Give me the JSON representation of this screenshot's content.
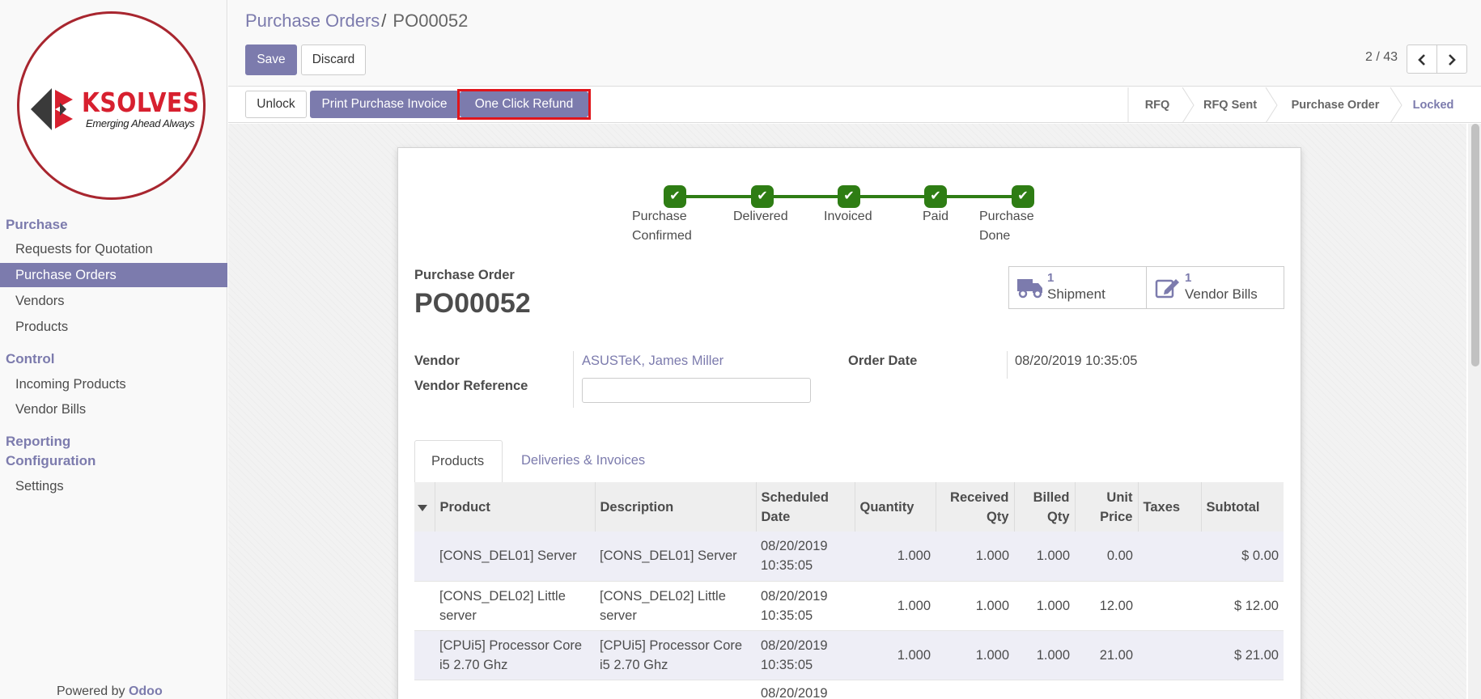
{
  "sidebar": {
    "logo_text": "KSOLVES",
    "logo_tagline": "Emerging Ahead Always",
    "sections": [
      {
        "label": "Purchase",
        "items": [
          "Requests for Quotation",
          "Purchase Orders",
          "Vendors",
          "Products"
        ]
      },
      {
        "label": "Control",
        "items": [
          "Incoming Products",
          "Vendor Bills"
        ]
      },
      {
        "label": "Reporting",
        "items": []
      },
      {
        "label": "Configuration",
        "items": [
          "Settings"
        ]
      }
    ],
    "active_item": "Purchase Orders",
    "powered_prefix": "Powered by",
    "powered_brand": "Odoo"
  },
  "header": {
    "breadcrumb_parent": "Purchase Orders",
    "breadcrumb_sep": "/",
    "breadcrumb_current": "PO00052",
    "save_label": "Save",
    "discard_label": "Discard",
    "pager": "2 / 43",
    "prev_icon": "chevron-left-icon",
    "next_icon": "chevron-right-icon"
  },
  "actions": {
    "unlock_label": "Unlock",
    "print_label": "Print Purchase Invoice",
    "refund_label": "One Click Refund"
  },
  "status_stages": [
    "RFQ",
    "RFQ Sent",
    "Purchase Order",
    "Locked"
  ],
  "active_stage": "Locked",
  "progress": {
    "steps": [
      {
        "line1": "Purchase",
        "line2": "Confirmed"
      },
      {
        "line1": "Delivered",
        "line2": ""
      },
      {
        "line1": "Invoiced",
        "line2": ""
      },
      {
        "line1": "Paid",
        "line2": ""
      },
      {
        "line1": "Purchase",
        "line2": "Done"
      }
    ],
    "step_color": "#2e7d14"
  },
  "form": {
    "doc_label": "Purchase Order",
    "doc_number": "PO00052",
    "smart_buttons": [
      {
        "count": "1",
        "label": "Shipment",
        "icon": "truck-icon"
      },
      {
        "count": "1",
        "label": "Vendor Bills",
        "icon": "edit-icon"
      }
    ],
    "vendor_label": "Vendor",
    "vendor_value": "ASUSTeK, James Miller",
    "vendor_ref_label": "Vendor Reference",
    "vendor_ref_value": "",
    "order_date_label": "Order Date",
    "order_date_value": "08/20/2019 10:35:05"
  },
  "tabs": [
    "Products",
    "Deliveries & Invoices"
  ],
  "table": {
    "headers": [
      "Product",
      "Description",
      "Scheduled Date",
      "Quantity",
      "Received Qty",
      "Billed Qty",
      "Unit Price",
      "Taxes",
      "Subtotal"
    ],
    "rows": [
      {
        "product": "[CONS_DEL01] Server",
        "description": "[CONS_DEL01] Server",
        "date": "08/20/2019",
        "time": "10:35:05",
        "qty": "1.000",
        "received": "1.000",
        "billed": "1.000",
        "price": "0.00",
        "taxes": "",
        "subtotal": "$ 0.00"
      },
      {
        "product": "[CONS_DEL02] Little server",
        "description": "[CONS_DEL02] Little server",
        "date": "08/20/2019",
        "time": "10:35:05",
        "qty": "1.000",
        "received": "1.000",
        "billed": "1.000",
        "price": "12.00",
        "taxes": "",
        "subtotal": "$ 12.00"
      },
      {
        "product": "[CPUi5] Processor Core i5 2.70 Ghz",
        "description": "[CPUi5] Processor Core i5 2.70 Ghz",
        "date": "08/20/2019",
        "time": "10:35:05",
        "qty": "1.000",
        "received": "1.000",
        "billed": "1.000",
        "price": "21.00",
        "taxes": "",
        "subtotal": "$ 21.00"
      },
      {
        "product": "",
        "description": "",
        "date": "08/20/2019",
        "time": "",
        "qty": "",
        "received": "",
        "billed": "",
        "price": "",
        "taxes": "",
        "subtotal": ""
      }
    ]
  },
  "colors": {
    "accent": "#7c7bad",
    "highlight": "#e0151b",
    "success": "#2e7d14"
  }
}
